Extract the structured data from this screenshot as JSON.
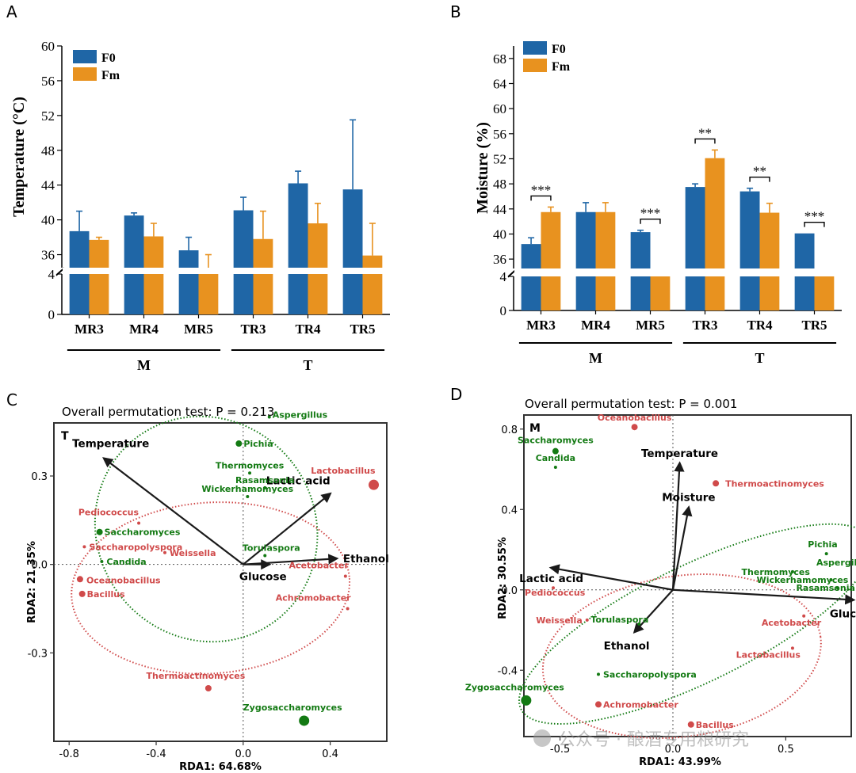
{
  "colors": {
    "f0": "#1f66a6",
    "fm": "#e8921f",
    "green": "#137a13",
    "red": "#d04a4a",
    "arrow": "#1a1a1a"
  },
  "chart_data": [
    {
      "panel": "A",
      "type": "bar",
      "ylabel": "Temperature (°C)",
      "categories": [
        "MR3",
        "MR4",
        "MR5",
        "TR3",
        "TR4",
        "TR5"
      ],
      "groups": [
        {
          "label": "M",
          "members": [
            "MR3",
            "MR4",
            "MR5"
          ]
        },
        {
          "label": "T",
          "members": [
            "TR3",
            "TR4",
            "TR5"
          ]
        }
      ],
      "upper_ylim": [
        34.5,
        60
      ],
      "upper_ticks": [
        "36",
        "40",
        "44",
        "48",
        "52",
        "56",
        "60"
      ],
      "lower_ylim": [
        0,
        4
      ],
      "lower_ticks": [
        "0",
        "4"
      ],
      "series": [
        {
          "name": "F0",
          "values": [
            38.7,
            40.5,
            36.5,
            41.1,
            44.2,
            43.5
          ],
          "errors": [
            2.3,
            0.3,
            1.5,
            1.5,
            1.4,
            8.0
          ]
        },
        {
          "name": "Fm",
          "values": [
            37.7,
            38.1,
            34.5,
            37.8,
            39.6,
            35.9
          ],
          "errors": [
            0.3,
            1.5,
            1.5,
            3.2,
            2.3,
            3.7
          ]
        }
      ],
      "legend": [
        "F0",
        "Fm"
      ],
      "significance": []
    },
    {
      "panel": "B",
      "type": "bar",
      "ylabel": "Moisture (%)",
      "categories": [
        "MR3",
        "MR4",
        "MR5",
        "TR3",
        "TR4",
        "TR5"
      ],
      "groups": [
        {
          "label": "M",
          "members": [
            "MR3",
            "MR4",
            "MR5"
          ]
        },
        {
          "label": "T",
          "members": [
            "TR3",
            "TR4",
            "TR5"
          ]
        }
      ],
      "upper_ylim": [
        34.5,
        70
      ],
      "upper_ticks": [
        "36",
        "40",
        "44",
        "48",
        "52",
        "56",
        "60",
        "64",
        "68"
      ],
      "lower_ylim": [
        0,
        4
      ],
      "lower_ticks": [
        "0",
        "4"
      ],
      "series": [
        {
          "name": "F0",
          "values": [
            38.4,
            43.5,
            40.3,
            47.5,
            46.8,
            40.1
          ],
          "errors": [
            1.0,
            1.5,
            0.3,
            0.5,
            0.5,
            0
          ]
        },
        {
          "name": "Fm",
          "values": [
            43.5,
            43.5,
            34.5,
            52.1,
            43.4,
            34.5
          ],
          "errors": [
            0.8,
            1.5,
            0,
            1.3,
            1.5,
            0
          ]
        }
      ],
      "legend": [
        "F0",
        "Fm"
      ],
      "significance": [
        {
          "category": "MR3",
          "label": "***"
        },
        {
          "category": "MR5",
          "label": "***"
        },
        {
          "category": "TR3",
          "label": "**"
        },
        {
          "category": "TR4",
          "label": "**"
        },
        {
          "category": "TR5",
          "label": "***"
        }
      ]
    },
    {
      "panel": "C",
      "type": "scatter",
      "subtype": "rda-biplot",
      "title": "Overall permutation test: P = 0.213",
      "corner_label": "T",
      "xlabel": "RDA1: 64.68%",
      "ylabel": "RDA2: 21.35%",
      "xlim": [
        -0.87,
        0.66
      ],
      "ylim": [
        -0.6,
        0.48
      ],
      "xticks": [
        {
          "v": -0.8,
          "t": "-0.8"
        },
        {
          "v": -0.4,
          "t": "-0.4"
        },
        {
          "v": 0,
          "t": "0.0"
        },
        {
          "v": 0.4,
          "t": "0.4"
        }
      ],
      "yticks": [
        {
          "v": 0.3,
          "t": "0.3"
        },
        {
          "v": 0,
          "t": "0.0"
        },
        {
          "v": -0.3,
          "t": "-0.3"
        }
      ],
      "vectors": [
        {
          "name": "Temperature",
          "x": -0.64,
          "y": 0.36
        },
        {
          "name": "Lactic acid",
          "x": 0.4,
          "y": 0.24
        },
        {
          "name": "Ethanol",
          "x": 0.43,
          "y": 0.02
        },
        {
          "name": "Glucose",
          "x": 0.12,
          "y": 0.0
        }
      ],
      "points": [
        {
          "name": "Aspergillus",
          "x": 0.12,
          "y": 0.5,
          "group": "green",
          "size": 1
        },
        {
          "name": "Pichia",
          "x": -0.02,
          "y": 0.41,
          "group": "green",
          "size": 2
        },
        {
          "name": "Thermomyces",
          "x": 0.03,
          "y": 0.31,
          "group": "green",
          "size": 1
        },
        {
          "name": "Rasamsonia",
          "x": 0.1,
          "y": 0.26,
          "group": "green",
          "size": 1
        },
        {
          "name": "Wickerhamomyces",
          "x": 0.02,
          "y": 0.23,
          "group": "green",
          "size": 1
        },
        {
          "name": "Saccharomyces",
          "x": -0.66,
          "y": 0.11,
          "group": "green",
          "size": 2
        },
        {
          "name": "Candida",
          "x": -0.65,
          "y": 0.01,
          "group": "green",
          "size": 1
        },
        {
          "name": "Torulaspora",
          "x": 0.1,
          "y": 0.03,
          "group": "green",
          "size": 1
        },
        {
          "name": "Zygosaccharomyces",
          "x": 0.28,
          "y": -0.53,
          "group": "green",
          "size": 3
        },
        {
          "name": "Lactobacillus",
          "x": 0.6,
          "y": 0.27,
          "group": "red",
          "size": 3
        },
        {
          "name": "Pediococcus",
          "x": -0.48,
          "y": 0.14,
          "group": "red",
          "size": 1
        },
        {
          "name": "Saccharopolyspora",
          "x": -0.73,
          "y": 0.06,
          "group": "red",
          "size": 1
        },
        {
          "name": "Weissella",
          "x": -0.36,
          "y": 0.04,
          "group": "red",
          "size": 1
        },
        {
          "name": "Oceanobacillus",
          "x": -0.75,
          "y": -0.05,
          "group": "red",
          "size": 2
        },
        {
          "name": "Bacillus",
          "x": -0.74,
          "y": -0.1,
          "group": "red",
          "size": 2
        },
        {
          "name": "Acetobacter",
          "x": 0.47,
          "y": -0.04,
          "group": "red",
          "size": 1
        },
        {
          "name": "Achromobacter",
          "x": 0.48,
          "y": -0.15,
          "group": "red",
          "size": 1
        },
        {
          "name": "Thermoactinomyces",
          "x": -0.16,
          "y": -0.42,
          "group": "red",
          "size": 2
        }
      ],
      "ellipses": [
        {
          "group": "green",
          "cx": -0.17,
          "cy": 0.12,
          "rx": 0.5,
          "ry": 0.39,
          "angle_deg": -38
        },
        {
          "group": "red",
          "cx": -0.15,
          "cy": -0.08,
          "rx": 0.64,
          "ry": 0.29,
          "angle_deg": -4
        }
      ]
    },
    {
      "panel": "D",
      "type": "scatter",
      "subtype": "rda-biplot",
      "title": "Overall permutation test: P = 0.001",
      "corner_label": "M",
      "xlabel": "RDA1: 43.99%",
      "ylabel": "RDA2: 30.55%",
      "xlim": [
        -0.66,
        0.79
      ],
      "ylim": [
        -0.73,
        0.87
      ],
      "xticks": [
        {
          "v": -0.5,
          "t": "-0.5"
        },
        {
          "v": 0,
          "t": "0.0"
        },
        {
          "v": 0.5,
          "t": "0.5"
        }
      ],
      "yticks": [
        {
          "v": 0.8,
          "t": "0.8"
        },
        {
          "v": 0.4,
          "t": "0.4"
        },
        {
          "v": 0,
          "t": "0.0"
        },
        {
          "v": -0.4,
          "t": "-0.4"
        }
      ],
      "vectors": [
        {
          "name": "Temperature",
          "x": 0.03,
          "y": 0.63
        },
        {
          "name": "Moisture",
          "x": 0.07,
          "y": 0.41
        },
        {
          "name": "Lactic acid",
          "x": -0.54,
          "y": 0.11
        },
        {
          "name": "Glucose",
          "x": 0.8,
          "y": -0.05
        },
        {
          "name": "Ethanol",
          "x": -0.17,
          "y": -0.21
        }
      ],
      "points": [
        {
          "name": "Saccharomyces",
          "x": -0.52,
          "y": 0.69,
          "group": "green",
          "size": 2
        },
        {
          "name": "Candida",
          "x": -0.52,
          "y": 0.61,
          "group": "green",
          "size": 1
        },
        {
          "name": "Pichia",
          "x": 0.68,
          "y": 0.18,
          "group": "green",
          "size": 1
        },
        {
          "name": "Aspergillus",
          "x": 0.83,
          "y": 0.09,
          "group": "green",
          "size": 1
        },
        {
          "name": "Thermomyces",
          "x": 0.53,
          "y": 0.09,
          "group": "green",
          "size": 1
        },
        {
          "name": "Wickerhamomyces",
          "x": 0.7,
          "y": 0.05,
          "group": "green",
          "size": 1
        },
        {
          "name": "Rasamsonia",
          "x": 0.73,
          "y": 0.01,
          "group": "green",
          "size": 1
        },
        {
          "name": "Torulaspora",
          "x": -0.15,
          "y": -0.17,
          "group": "green",
          "size": 1
        },
        {
          "name": "Saccharopolyspora",
          "x": -0.33,
          "y": -0.42,
          "group": "green",
          "size": 1
        },
        {
          "name": "Zygosaccharomyces",
          "x": -0.65,
          "y": -0.55,
          "group": "green",
          "size": 3
        },
        {
          "name": "Oceanobacillus",
          "x": -0.17,
          "y": 0.81,
          "group": "red",
          "size": 2
        },
        {
          "name": "Thermoactinomyces",
          "x": 0.19,
          "y": 0.53,
          "group": "red",
          "size": 2
        },
        {
          "name": "Pediococcus",
          "x": -0.53,
          "y": 0.01,
          "group": "red",
          "size": 1
        },
        {
          "name": "Weissella",
          "x": -0.38,
          "y": -0.15,
          "group": "red",
          "size": 1
        },
        {
          "name": "Acetobacter",
          "x": 0.58,
          "y": -0.13,
          "group": "red",
          "size": 1
        },
        {
          "name": "Lactobacillus",
          "x": 0.53,
          "y": -0.29,
          "group": "red",
          "size": 1
        },
        {
          "name": "Achromobacter",
          "x": -0.33,
          "y": -0.57,
          "group": "red",
          "size": 2
        },
        {
          "name": "Bacillus",
          "x": 0.08,
          "y": -0.67,
          "group": "red",
          "size": 2
        }
      ],
      "ellipses": [
        {
          "group": "green",
          "cx": 0.1,
          "cy": -0.17,
          "rx": 0.86,
          "ry": 0.29,
          "angle_deg": -26
        },
        {
          "group": "red",
          "cx": 0.04,
          "cy": -0.33,
          "rx": 0.62,
          "ry": 0.4,
          "angle_deg": -8
        }
      ]
    }
  ],
  "panel_labels": [
    "A",
    "B",
    "C",
    "D"
  ],
  "watermark": "公众号 · 酿酒专用粮研究"
}
